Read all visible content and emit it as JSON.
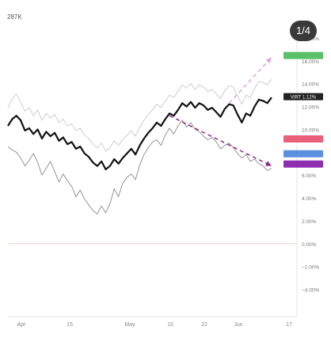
{
  "header": {
    "volume_label": "287K"
  },
  "page_counter": "1/4",
  "chart_data": {
    "type": "line",
    "y_unit": "%",
    "ylim": [
      -5,
      18
    ],
    "y_ticks": [
      18,
      16,
      14,
      12,
      10,
      8,
      6,
      4,
      2,
      0,
      -2,
      -4
    ],
    "y_tick_labels": [
      "18.00%",
      "16.00%",
      "14.00%",
      "12.00%",
      "10.00%",
      "8.00%",
      "6.00%",
      "4.00%",
      "2.00%",
      "0.00%",
      "−2.00%",
      "−4.00%"
    ],
    "x_tick_labels": [
      "Apr",
      "15",
      "May",
      "15",
      "22",
      "Jun",
      "17"
    ],
    "grid": false,
    "series": [
      {
        "role": "main",
        "color": "#111111",
        "values": [
          10.3,
          10.9,
          11.2,
          10.8,
          9.9,
          10.1,
          9.6,
          10.0,
          9.2,
          9.8,
          9.4,
          9.7,
          9.0,
          9.3,
          8.7,
          8.9,
          8.3,
          8.5,
          7.9,
          7.6,
          7.1,
          6.8,
          7.2,
          6.5,
          6.8,
          7.4,
          7.0,
          7.5,
          7.9,
          8.3,
          7.8,
          8.6,
          9.2,
          9.7,
          10.1,
          10.6,
          10.3,
          10.9,
          11.4,
          11.2,
          11.7,
          12.3,
          12.0,
          12.4,
          11.9,
          12.3,
          12.1,
          11.7,
          11.9,
          11.5,
          11.1,
          11.8,
          12.2,
          12.1,
          11.3,
          10.6,
          11.4,
          11.2,
          12.0,
          12.6,
          12.5,
          12.3,
          12.8
        ]
      },
      {
        "role": "upper-band",
        "color": "#c8c8c8",
        "values": [
          11.9,
          12.7,
          13.1,
          12.4,
          11.6,
          11.9,
          11.2,
          11.7,
          10.8,
          11.4,
          11.0,
          11.3,
          10.6,
          10.9,
          10.3,
          10.5,
          9.9,
          10.1,
          9.5,
          9.2,
          8.7,
          8.4,
          8.8,
          8.1,
          8.4,
          9.0,
          8.6,
          9.1,
          9.5,
          9.9,
          9.4,
          10.2,
          10.8,
          11.3,
          11.7,
          12.2,
          11.9,
          12.5,
          13.0,
          12.8,
          13.3,
          13.9,
          13.6,
          14.0,
          13.5,
          13.9,
          13.7,
          13.3,
          13.5,
          13.1,
          12.7,
          13.4,
          13.8,
          13.7,
          12.9,
          12.2,
          13.0,
          12.8,
          13.6,
          14.2,
          14.1,
          13.9,
          14.4
        ]
      },
      {
        "role": "lower-band",
        "color": "#8a8a8a",
        "values": [
          8.5,
          8.2,
          8.0,
          7.5,
          6.8,
          7.3,
          7.9,
          7.1,
          6.0,
          6.6,
          7.2,
          6.3,
          5.4,
          6.1,
          5.5,
          5.0,
          4.1,
          4.7,
          3.9,
          3.4,
          2.9,
          2.6,
          3.3,
          2.7,
          3.5,
          4.8,
          4.1,
          5.3,
          5.8,
          6.1,
          5.6,
          6.9,
          7.8,
          8.4,
          8.9,
          9.1,
          8.6,
          9.5,
          10.1,
          9.6,
          10.3,
          10.8,
          10.2,
          10.6,
          10.0,
          9.8,
          9.4,
          9.1,
          9.3,
          8.9,
          8.3,
          8.6,
          8.8,
          8.4,
          7.9,
          7.5,
          7.8,
          7.2,
          7.4,
          7.0,
          6.8,
          6.4,
          6.6
        ]
      }
    ],
    "projections": [
      {
        "color": "#d9a6df",
        "from": [
          52,
          12.3
        ],
        "to": [
          62,
          16.3
        ]
      },
      {
        "color": "#8e2b8a",
        "from": [
          38,
          11.2
        ],
        "to": [
          62,
          6.8
        ]
      }
    ],
    "value_tags": [
      {
        "text": "",
        "value": 16.5,
        "color": "#58c06a"
      },
      {
        "text": "VIRT 1.12%",
        "value": 12.9,
        "color": "#222222"
      },
      {
        "text": "",
        "value": 9.2,
        "color": "#e8607a"
      },
      {
        "text": "",
        "value": 7.9,
        "color": "#5b8fe0"
      },
      {
        "text": "",
        "value": 7.0,
        "color": "#8c2fb0"
      }
    ]
  }
}
